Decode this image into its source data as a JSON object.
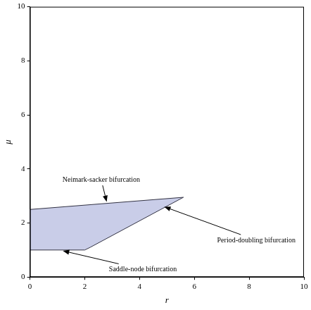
{
  "chart_data": {
    "type": "area",
    "xlabel": "r",
    "ylabel": "μ",
    "x": [
      0,
      2,
      2.2,
      5.6,
      0,
      0
    ],
    "values": [
      1,
      1,
      1.1,
      2.95,
      2.5,
      1
    ],
    "color": "#c9cde8",
    "xlim": [
      0,
      10
    ],
    "ylim": [
      0,
      10
    ],
    "xticks": [
      0,
      2,
      4,
      6,
      8,
      10
    ],
    "yticks": [
      0,
      2,
      4,
      6,
      8,
      10
    ],
    "grid": false,
    "annotations": [
      {
        "text": "Neimark-sacker bifurcation",
        "x": 2.6,
        "y": 3.6,
        "arrow_to": [
          2.8,
          2.78
        ]
      },
      {
        "text": "Period-doubling bifurcation",
        "x": 8.26,
        "y": 1.36,
        "arrow_to": [
          4.9,
          2.6
        ]
      },
      {
        "text": "Saddle-node bifurcation",
        "x": 4.12,
        "y": 0.28,
        "arrow_to": [
          1.2,
          0.97
        ]
      }
    ]
  }
}
